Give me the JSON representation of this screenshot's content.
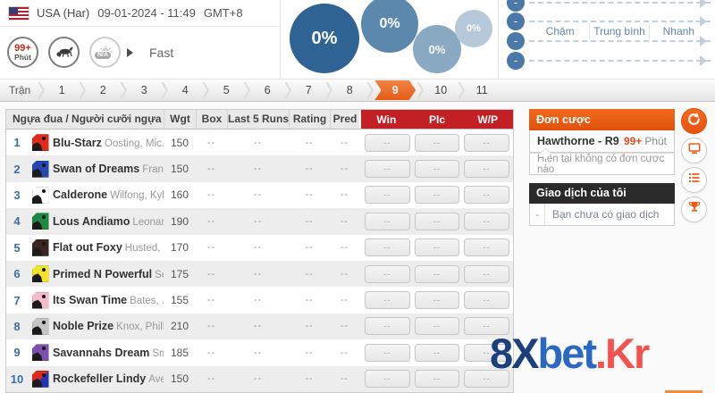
{
  "topbar": {
    "country": "USA (Har)",
    "datetime": "09-01-2024 - 11:49",
    "timezone": "GMT+8",
    "countdown_value": "99+",
    "countdown_unit": "Phút",
    "weather_na": "N/A",
    "track_condition": "Fast"
  },
  "bubbles": [
    "0%",
    "0%",
    "0%",
    "0%"
  ],
  "bubble_colors": [
    "#2e6394",
    "#5c88ae",
    "#8aa9c3",
    "#b6c9da"
  ],
  "pace": {
    "labels": [
      "Chậm",
      "Trung bình",
      "Nhanh"
    ],
    "dot": "-"
  },
  "tabs": {
    "prefix": "Trận",
    "items": [
      "1",
      "2",
      "3",
      "4",
      "5",
      "6",
      "7",
      "8",
      "9",
      "10",
      "11"
    ],
    "selected": "9"
  },
  "table": {
    "headers": {
      "name": "Ngựa đua / Người cưỡi ngựa",
      "wgt": "Wgt",
      "box": "Box",
      "last5": "Last 5 Runs",
      "rating": "Rating",
      "pred": "Pred"
    },
    "bet_headers": [
      "Win",
      "Plc",
      "W/P"
    ],
    "dash": "--",
    "rows": [
      {
        "num": "1",
        "horse": "Blu-Starz",
        "jockey": "Oosting, Mic...",
        "wgt": "150",
        "silk": "#e02a1a"
      },
      {
        "num": "2",
        "horse": "Swan of Dreams",
        "jockey": "Fran...",
        "wgt": "150",
        "silk": "#2547b2"
      },
      {
        "num": "3",
        "horse": "Calderone",
        "jockey": "Wilfong, Kyle",
        "wgt": "160",
        "silk": "#ffffff"
      },
      {
        "num": "4",
        "horse": "Lous Andiamo",
        "jockey": "Leonar...",
        "wgt": "190",
        "silk": "#1d8a42"
      },
      {
        "num": "5",
        "horse": "Flat out Foxy",
        "jockey": "Husted, ...",
        "wgt": "170",
        "silk": "#3b2522"
      },
      {
        "num": "6",
        "horse": "Primed N Powerful",
        "jockey": "Se...",
        "wgt": "175",
        "silk": "#f2e428"
      },
      {
        "num": "7",
        "horse": "Its Swan Time",
        "jockey": "Bates, ...",
        "wgt": "155",
        "silk": "#f6bacb"
      },
      {
        "num": "8",
        "horse": "Noble Prize",
        "jockey": "Knox, Phillip",
        "wgt": "210",
        "silk": "#c4c4c4"
      },
      {
        "num": "9",
        "horse": "Savannahs Dream",
        "jockey": "Sm...",
        "wgt": "185",
        "silk": "#7d4fae"
      },
      {
        "num": "10",
        "horse": "Rockefeller Lindy",
        "jockey": "Ave...",
        "wgt": "150",
        "silk": "linear-gradient(135deg,#e02a1a 47%,#2233b0 53%)"
      }
    ]
  },
  "bet_panel": {
    "title": "Đơn cược",
    "race": "Hawthorne - R9",
    "countdown": "99+",
    "countdown_unit": "Phút",
    "empty_text": "Hiện tại không có đơn cược nào",
    "tx_title": "Giao dịch của tôi",
    "tx_dash": "-",
    "tx_empty": "Bạn chưa có giao dịch"
  },
  "watermark": {
    "part1": "8X",
    "part2": "bet",
    "part3": ".Kr",
    "color1": "#1c3f7d",
    "color2": "#2a68c2",
    "color3": "#f4524e"
  },
  "colors": {
    "accent_orange": "#e65c16",
    "bet_header_red": "#c32026",
    "bubble_blue": "#2e6394"
  }
}
